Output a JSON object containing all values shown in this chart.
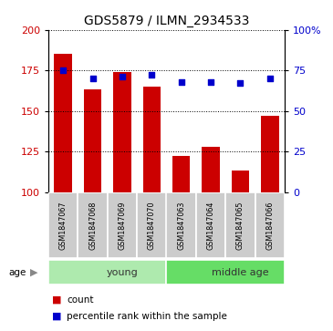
{
  "title": "GDS5879 / ILMN_2934533",
  "samples": [
    "GSM1847067",
    "GSM1847068",
    "GSM1847069",
    "GSM1847070",
    "GSM1847063",
    "GSM1847064",
    "GSM1847065",
    "GSM1847066"
  ],
  "counts": [
    185,
    163,
    174,
    165,
    122,
    128,
    113,
    147
  ],
  "percentiles": [
    75,
    70,
    71,
    72,
    68,
    68,
    67,
    70
  ],
  "groups": [
    {
      "label": "young",
      "start": 0,
      "end": 4,
      "color": "#aeeaae"
    },
    {
      "label": "middle age",
      "start": 4,
      "end": 8,
      "color": "#66dd66"
    }
  ],
  "ylim_left": [
    100,
    200
  ],
  "ylim_right": [
    0,
    100
  ],
  "yticks_left": [
    100,
    125,
    150,
    175,
    200
  ],
  "yticks_right": [
    0,
    25,
    50,
    75,
    100
  ],
  "bar_color": "#cc0000",
  "dot_color": "#0000cc",
  "bar_width": 0.6,
  "tick_label_color_left": "#cc0000",
  "tick_label_color_right": "#0000cc",
  "sample_bg_color": "#cccccc",
  "legend_count_color": "#cc0000",
  "legend_dot_color": "#0000cc",
  "fig_width": 3.65,
  "fig_height": 3.63
}
